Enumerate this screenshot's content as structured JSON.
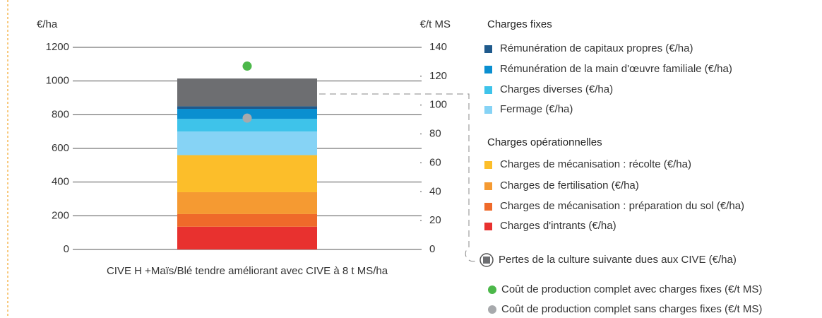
{
  "chart_data": {
    "type": "bar",
    "stacked": true,
    "y_label": "€/ha",
    "y2_label": "€/t MS",
    "categories": [
      "CIVE H +Maïs/Blé tendre améliorant avec CIVE à 8 t MS/ha"
    ],
    "ylim": [
      0,
      1200
    ],
    "yticks": [
      0,
      200,
      400,
      600,
      800,
      1000,
      1200
    ],
    "y2lim": [
      0,
      140
    ],
    "y2ticks": [
      0,
      20,
      40,
      60,
      80,
      100,
      120,
      140
    ],
    "grid": true,
    "legend_headings": [
      "Charges fixes",
      "Charges opérationnelles"
    ],
    "series": [
      {
        "name": "Rémunération de capitaux propres (€/ha)",
        "color": "#1f5a8c",
        "values": [
          15
        ]
      },
      {
        "name": "Rémunération de la main d'œuvre familiale  (€/ha)",
        "color": "#0a8fd0",
        "values": [
          60
        ]
      },
      {
        "name": "Charges diverses (€/ha)",
        "color": "#3ec3ea",
        "values": [
          75
        ]
      },
      {
        "name": "Fermage (€/ha)",
        "color": "#86d3f5",
        "values": [
          140
        ]
      },
      {
        "name": "Charges de mécanisation : récolte (€/ha)",
        "color": "#fcbe2a",
        "values": [
          220
        ]
      },
      {
        "name": "Charges de fertilisation (€/ha)",
        "color": "#f59a32",
        "values": [
          130
        ]
      },
      {
        "name": "Charges de mécanisation : préparation du sol (€/ha)",
        "color": "#ef6a2a",
        "values": [
          75
        ]
      },
      {
        "name": "Charges d'intrants (€/ha)",
        "color": "#e8312f",
        "values": [
          135
        ]
      },
      {
        "name": "Pertes de la culture suivante dues aux CIVE (€/ha)",
        "color": "#6d6e71",
        "values": [
          165
        ]
      }
    ],
    "points": [
      {
        "name": "Coût de production complet avec charges fixes (€/t MS)",
        "color": "#4cb84a",
        "axis": "y2",
        "values": [
          127
        ]
      },
      {
        "name": "Coût de production complet sans charges fixes (€/t MS)",
        "color": "#a7a9ac",
        "axis": "y2",
        "values": [
          91
        ]
      }
    ]
  }
}
